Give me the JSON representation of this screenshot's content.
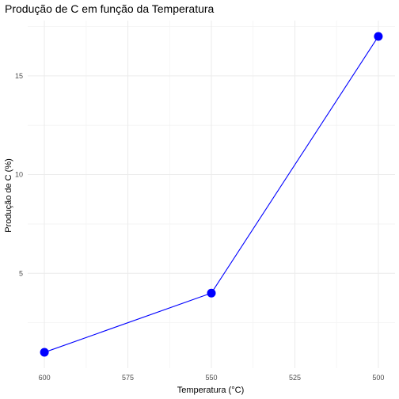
{
  "chart_data": {
    "type": "line",
    "title": "Produção de C em função da Temperatura",
    "xlabel": "Temperatura (°C)",
    "ylabel": "Produção de C (%)",
    "x_reversed": true,
    "xlim": [
      605,
      495
    ],
    "ylim": [
      0.2,
      17.8
    ],
    "x_ticks": [
      600,
      575,
      550,
      525,
      500
    ],
    "x_tick_labels": [
      "600",
      "575",
      "550",
      "525",
      "500"
    ],
    "y_ticks": [
      5,
      10,
      15
    ],
    "y_tick_labels": [
      "5",
      "10",
      "15"
    ],
    "grid": true,
    "legend": "none",
    "series": [
      {
        "x": [
          600,
          550,
          500
        ],
        "y": [
          1,
          4,
          17
        ],
        "line_color": "#0000ff",
        "point_color": "#0000ff"
      }
    ]
  }
}
